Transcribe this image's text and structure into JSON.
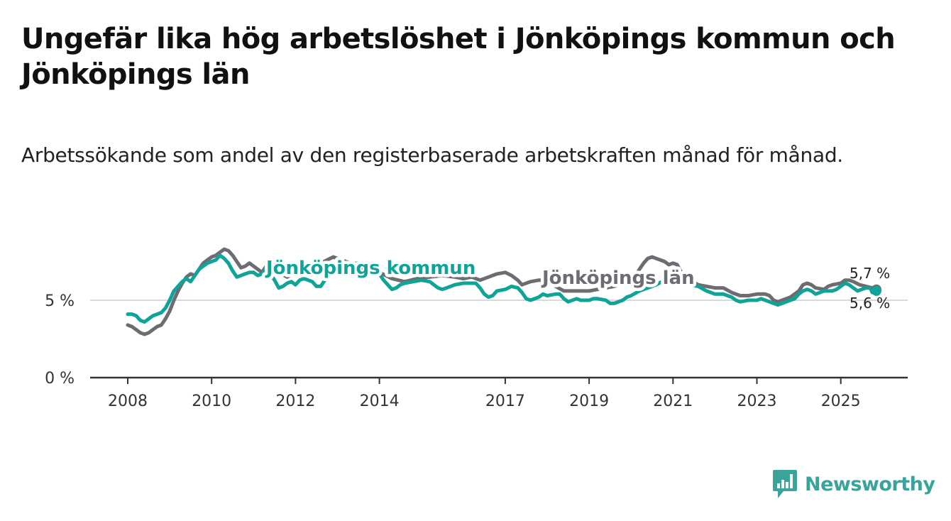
{
  "title": "Ungefär lika hög arbetslöshet i Jönköpings kommun och Jönköpings län",
  "subtitle": "Arbetssökande som andel av den registerbaserade arbetskraften månad för månad.",
  "logo": {
    "text": "Newsworthy",
    "icon": "newsworthy-logo-icon"
  },
  "colors": {
    "kommun": "#10a398",
    "lan": "#6e6c73",
    "grid": "#d9d9d9",
    "axis": "#333333",
    "brand": "#3aa39a"
  },
  "chart_data": {
    "type": "line",
    "title": "Ungefär lika hög arbetslöshet i Jönköpings kommun och Jönköpings län",
    "xlabel": "",
    "ylabel": "",
    "ylim": [
      0,
      10
    ],
    "xlim": [
      2008.0,
      2025.85
    ],
    "y_ticks": [
      {
        "value": 0,
        "label": "0 %"
      },
      {
        "value": 5,
        "label": "5 %"
      }
    ],
    "x_ticks": [
      {
        "value": 2008,
        "label": "2008"
      },
      {
        "value": 2010,
        "label": "2010"
      },
      {
        "value": 2012,
        "label": "2012"
      },
      {
        "value": 2014,
        "label": "2014"
      },
      {
        "value": 2017,
        "label": "2017"
      },
      {
        "value": 2019,
        "label": "2019"
      },
      {
        "value": 2021,
        "label": "2021"
      },
      {
        "value": 2023,
        "label": "2023"
      },
      {
        "value": 2025,
        "label": "2025"
      }
    ],
    "series": [
      {
        "name": "Jönköpings län",
        "key": "lan",
        "label_text": "Jönköpings län",
        "end_label": "5,7 %",
        "points": [
          [
            2008.0,
            3.4
          ],
          [
            2008.1,
            3.3
          ],
          [
            2008.2,
            3.1
          ],
          [
            2008.3,
            2.9
          ],
          [
            2008.4,
            2.8
          ],
          [
            2008.5,
            2.9
          ],
          [
            2008.6,
            3.1
          ],
          [
            2008.7,
            3.3
          ],
          [
            2008.8,
            3.4
          ],
          [
            2008.9,
            3.8
          ],
          [
            2009.0,
            4.3
          ],
          [
            2009.1,
            5.0
          ],
          [
            2009.2,
            5.6
          ],
          [
            2009.3,
            6.1
          ],
          [
            2009.4,
            6.5
          ],
          [
            2009.5,
            6.7
          ],
          [
            2009.6,
            6.6
          ],
          [
            2009.7,
            7.0
          ],
          [
            2009.8,
            7.4
          ],
          [
            2009.9,
            7.6
          ],
          [
            2010.0,
            7.8
          ],
          [
            2010.1,
            7.9
          ],
          [
            2010.2,
            8.1
          ],
          [
            2010.3,
            8.3
          ],
          [
            2010.4,
            8.2
          ],
          [
            2010.5,
            7.9
          ],
          [
            2010.6,
            7.5
          ],
          [
            2010.7,
            7.1
          ],
          [
            2010.8,
            7.2
          ],
          [
            2010.9,
            7.4
          ],
          [
            2011.0,
            7.2
          ],
          [
            2011.1,
            7.0
          ],
          [
            2011.2,
            6.8
          ],
          [
            2011.3,
            7.2
          ],
          [
            2011.4,
            7.4
          ],
          [
            2011.5,
            7.2
          ],
          [
            2011.6,
            6.8
          ],
          [
            2011.8,
            6.5
          ],
          [
            2012.0,
            6.8
          ],
          [
            2012.3,
            7.1
          ],
          [
            2012.6,
            7.4
          ],
          [
            2012.9,
            7.8
          ],
          [
            2013.2,
            7.5
          ],
          [
            2013.5,
            7.2
          ],
          [
            2013.8,
            6.9
          ],
          [
            2014.0,
            6.8
          ],
          [
            2014.3,
            6.4
          ],
          [
            2014.6,
            6.2
          ],
          [
            2014.9,
            6.4
          ],
          [
            2015.2,
            6.5
          ],
          [
            2015.5,
            6.6
          ],
          [
            2015.8,
            6.5
          ],
          [
            2016.0,
            6.4
          ],
          [
            2016.2,
            6.5
          ],
          [
            2016.4,
            6.3
          ],
          [
            2016.6,
            6.5
          ],
          [
            2016.8,
            6.7
          ],
          [
            2017.0,
            6.8
          ],
          [
            2017.15,
            6.6
          ],
          [
            2017.3,
            6.3
          ],
          [
            2017.4,
            6.0
          ],
          [
            2017.6,
            6.2
          ],
          [
            2017.8,
            6.3
          ],
          [
            2018.0,
            6.3
          ],
          [
            2018.2,
            5.9
          ],
          [
            2018.4,
            5.6
          ],
          [
            2018.6,
            5.6
          ],
          [
            2018.8,
            5.6
          ],
          [
            2019.0,
            5.6
          ],
          [
            2019.2,
            5.7
          ],
          [
            2019.4,
            5.8
          ],
          [
            2019.6,
            5.9
          ],
          [
            2019.8,
            6.1
          ],
          [
            2020.0,
            6.3
          ],
          [
            2020.1,
            6.6
          ],
          [
            2020.2,
            7.0
          ],
          [
            2020.3,
            7.4
          ],
          [
            2020.4,
            7.7
          ],
          [
            2020.5,
            7.8
          ],
          [
            2020.6,
            7.7
          ],
          [
            2020.8,
            7.5
          ],
          [
            2020.9,
            7.3
          ],
          [
            2021.0,
            7.4
          ],
          [
            2021.1,
            7.3
          ],
          [
            2021.2,
            6.8
          ],
          [
            2021.4,
            6.3
          ],
          [
            2021.6,
            6.0
          ],
          [
            2021.8,
            5.9
          ],
          [
            2022.0,
            5.8
          ],
          [
            2022.2,
            5.8
          ],
          [
            2022.4,
            5.5
          ],
          [
            2022.6,
            5.3
          ],
          [
            2022.8,
            5.3
          ],
          [
            2023.0,
            5.4
          ],
          [
            2023.2,
            5.4
          ],
          [
            2023.3,
            5.3
          ],
          [
            2023.4,
            5.0
          ],
          [
            2023.5,
            4.9
          ],
          [
            2023.6,
            5.0
          ],
          [
            2023.8,
            5.2
          ],
          [
            2024.0,
            5.6
          ],
          [
            2024.1,
            6.0
          ],
          [
            2024.2,
            6.1
          ],
          [
            2024.3,
            6.0
          ],
          [
            2024.4,
            5.8
          ],
          [
            2024.6,
            5.7
          ],
          [
            2024.7,
            5.9
          ],
          [
            2024.8,
            6.0
          ],
          [
            2025.0,
            6.1
          ],
          [
            2025.1,
            6.3
          ],
          [
            2025.2,
            6.3
          ],
          [
            2025.3,
            6.2
          ],
          [
            2025.45,
            6.0
          ],
          [
            2025.6,
            5.9
          ],
          [
            2025.75,
            5.8
          ],
          [
            2025.85,
            5.7
          ]
        ]
      },
      {
        "name": "Jönköpings kommun",
        "key": "kommun",
        "label_text": "Jönköpings kommun",
        "end_label": "5,6 %",
        "points": [
          [
            2008.0,
            4.1
          ],
          [
            2008.1,
            4.1
          ],
          [
            2008.2,
            4.0
          ],
          [
            2008.3,
            3.7
          ],
          [
            2008.4,
            3.6
          ],
          [
            2008.5,
            3.8
          ],
          [
            2008.6,
            4.0
          ],
          [
            2008.7,
            4.1
          ],
          [
            2008.8,
            4.2
          ],
          [
            2008.9,
            4.5
          ],
          [
            2009.0,
            5.0
          ],
          [
            2009.1,
            5.6
          ],
          [
            2009.2,
            5.9
          ],
          [
            2009.3,
            6.2
          ],
          [
            2009.4,
            6.4
          ],
          [
            2009.5,
            6.2
          ],
          [
            2009.6,
            6.6
          ],
          [
            2009.7,
            7.0
          ],
          [
            2009.8,
            7.2
          ],
          [
            2009.9,
            7.4
          ],
          [
            2010.0,
            7.5
          ],
          [
            2010.1,
            7.6
          ],
          [
            2010.2,
            7.9
          ],
          [
            2010.3,
            7.7
          ],
          [
            2010.4,
            7.4
          ],
          [
            2010.5,
            6.9
          ],
          [
            2010.6,
            6.5
          ],
          [
            2010.7,
            6.6
          ],
          [
            2010.8,
            6.7
          ],
          [
            2010.9,
            6.8
          ],
          [
            2011.0,
            6.8
          ],
          [
            2011.1,
            6.6
          ],
          [
            2011.2,
            6.7
          ],
          [
            2011.3,
            7.0
          ],
          [
            2011.4,
            6.7
          ],
          [
            2011.5,
            6.3
          ],
          [
            2011.6,
            5.8
          ],
          [
            2011.7,
            5.9
          ],
          [
            2011.8,
            6.1
          ],
          [
            2011.9,
            6.2
          ],
          [
            2012.0,
            6.0
          ],
          [
            2012.1,
            6.3
          ],
          [
            2012.2,
            6.4
          ],
          [
            2012.3,
            6.3
          ],
          [
            2012.4,
            6.2
          ],
          [
            2012.5,
            5.9
          ],
          [
            2012.6,
            5.9
          ],
          [
            2012.7,
            6.3
          ],
          [
            2012.8,
            6.6
          ],
          [
            2012.9,
            7.0
          ],
          [
            2013.2,
            7.3
          ],
          [
            2013.5,
            7.4
          ],
          [
            2013.8,
            7.2
          ],
          [
            2014.0,
            6.7
          ],
          [
            2014.1,
            6.3
          ],
          [
            2014.2,
            6.0
          ],
          [
            2014.3,
            5.7
          ],
          [
            2014.4,
            5.8
          ],
          [
            2014.5,
            6.0
          ],
          [
            2014.6,
            6.1
          ],
          [
            2014.8,
            6.2
          ],
          [
            2015.0,
            6.3
          ],
          [
            2015.2,
            6.2
          ],
          [
            2015.3,
            6.0
          ],
          [
            2015.4,
            5.8
          ],
          [
            2015.5,
            5.7
          ],
          [
            2015.6,
            5.8
          ],
          [
            2015.8,
            6.0
          ],
          [
            2016.0,
            6.1
          ],
          [
            2016.2,
            6.1
          ],
          [
            2016.3,
            6.1
          ],
          [
            2016.4,
            5.8
          ],
          [
            2016.5,
            5.4
          ],
          [
            2016.6,
            5.2
          ],
          [
            2016.7,
            5.3
          ],
          [
            2016.8,
            5.6
          ],
          [
            2017.0,
            5.7
          ],
          [
            2017.15,
            5.9
          ],
          [
            2017.3,
            5.8
          ],
          [
            2017.4,
            5.5
          ],
          [
            2017.5,
            5.1
          ],
          [
            2017.6,
            5.0
          ],
          [
            2017.8,
            5.2
          ],
          [
            2017.9,
            5.4
          ],
          [
            2018.0,
            5.3
          ],
          [
            2018.2,
            5.4
          ],
          [
            2018.3,
            5.4
          ],
          [
            2018.4,
            5.1
          ],
          [
            2018.5,
            4.9
          ],
          [
            2018.7,
            5.1
          ],
          [
            2018.8,
            5.0
          ],
          [
            2019.0,
            5.0
          ],
          [
            2019.1,
            5.1
          ],
          [
            2019.2,
            5.1
          ],
          [
            2019.4,
            5.0
          ],
          [
            2019.5,
            4.8
          ],
          [
            2019.6,
            4.8
          ],
          [
            2019.8,
            5.0
          ],
          [
            2019.9,
            5.2
          ],
          [
            2020.0,
            5.3
          ],
          [
            2020.2,
            5.6
          ],
          [
            2020.4,
            5.8
          ],
          [
            2020.6,
            6.0
          ],
          [
            2020.8,
            6.3
          ],
          [
            2021.0,
            6.7
          ],
          [
            2021.2,
            6.4
          ],
          [
            2021.4,
            6.0
          ],
          [
            2021.6,
            5.9
          ],
          [
            2021.8,
            5.6
          ],
          [
            2022.0,
            5.4
          ],
          [
            2022.2,
            5.4
          ],
          [
            2022.3,
            5.3
          ],
          [
            2022.4,
            5.2
          ],
          [
            2022.5,
            5.0
          ],
          [
            2022.6,
            4.9
          ],
          [
            2022.8,
            5.0
          ],
          [
            2023.0,
            5.0
          ],
          [
            2023.1,
            5.1
          ],
          [
            2023.2,
            5.0
          ],
          [
            2023.3,
            4.9
          ],
          [
            2023.4,
            4.8
          ],
          [
            2023.5,
            4.7
          ],
          [
            2023.6,
            4.8
          ],
          [
            2023.7,
            4.9
          ],
          [
            2023.8,
            5.0
          ],
          [
            2023.9,
            5.1
          ],
          [
            2024.0,
            5.4
          ],
          [
            2024.1,
            5.6
          ],
          [
            2024.2,
            5.7
          ],
          [
            2024.3,
            5.6
          ],
          [
            2024.4,
            5.4
          ],
          [
            2024.5,
            5.5
          ],
          [
            2024.6,
            5.6
          ],
          [
            2024.7,
            5.6
          ],
          [
            2024.8,
            5.6
          ],
          [
            2024.9,
            5.7
          ],
          [
            2025.0,
            5.9
          ],
          [
            2025.1,
            6.1
          ],
          [
            2025.2,
            6.0
          ],
          [
            2025.3,
            5.8
          ],
          [
            2025.4,
            5.6
          ],
          [
            2025.5,
            5.7
          ],
          [
            2025.6,
            5.8
          ],
          [
            2025.7,
            5.8
          ],
          [
            2025.75,
            5.5
          ],
          [
            2025.85,
            5.6
          ]
        ]
      }
    ]
  }
}
